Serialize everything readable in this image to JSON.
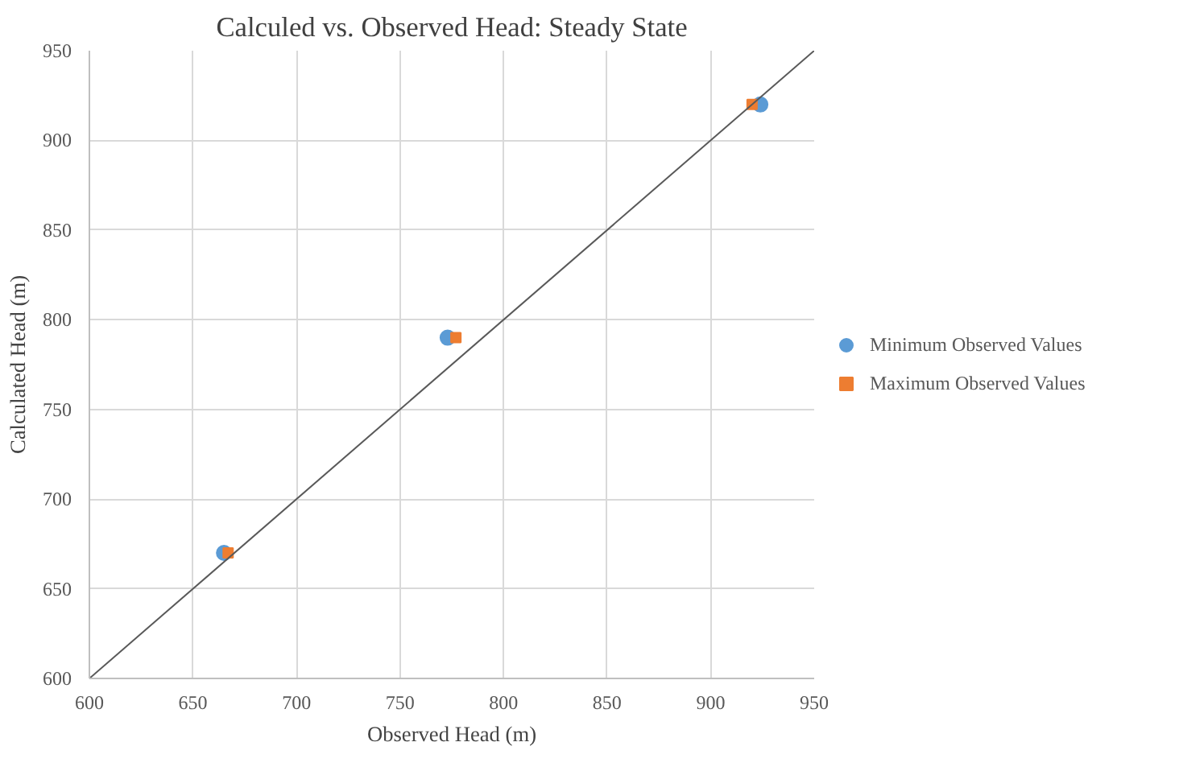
{
  "chart_data": {
    "type": "scatter",
    "title": "Calculed vs. Observed Head: Steady State",
    "xlabel": "Observed Head (m)",
    "ylabel": "Calculated Head (m)",
    "xlim": [
      600,
      950
    ],
    "ylim": [
      600,
      950
    ],
    "xticks": [
      600,
      650,
      700,
      750,
      800,
      850,
      900,
      950
    ],
    "yticks": [
      600,
      650,
      700,
      750,
      800,
      850,
      900,
      950
    ],
    "grid": true,
    "legend": "right",
    "series": [
      {
        "name": "Minimum Observed Values",
        "color": "#5b9bd5",
        "marker": "circle",
        "x": [
          665,
          773,
          924
        ],
        "values": [
          670,
          790,
          920
        ]
      },
      {
        "name": "Maximum Observed Values",
        "color": "#ed7d31",
        "marker": "square",
        "x": [
          667,
          777,
          920
        ],
        "values": [
          670,
          790,
          920
        ]
      },
      {
        "type": "line",
        "color": "#595959",
        "marker": "none",
        "x": [
          600,
          950
        ],
        "values": [
          600,
          950
        ]
      }
    ]
  }
}
